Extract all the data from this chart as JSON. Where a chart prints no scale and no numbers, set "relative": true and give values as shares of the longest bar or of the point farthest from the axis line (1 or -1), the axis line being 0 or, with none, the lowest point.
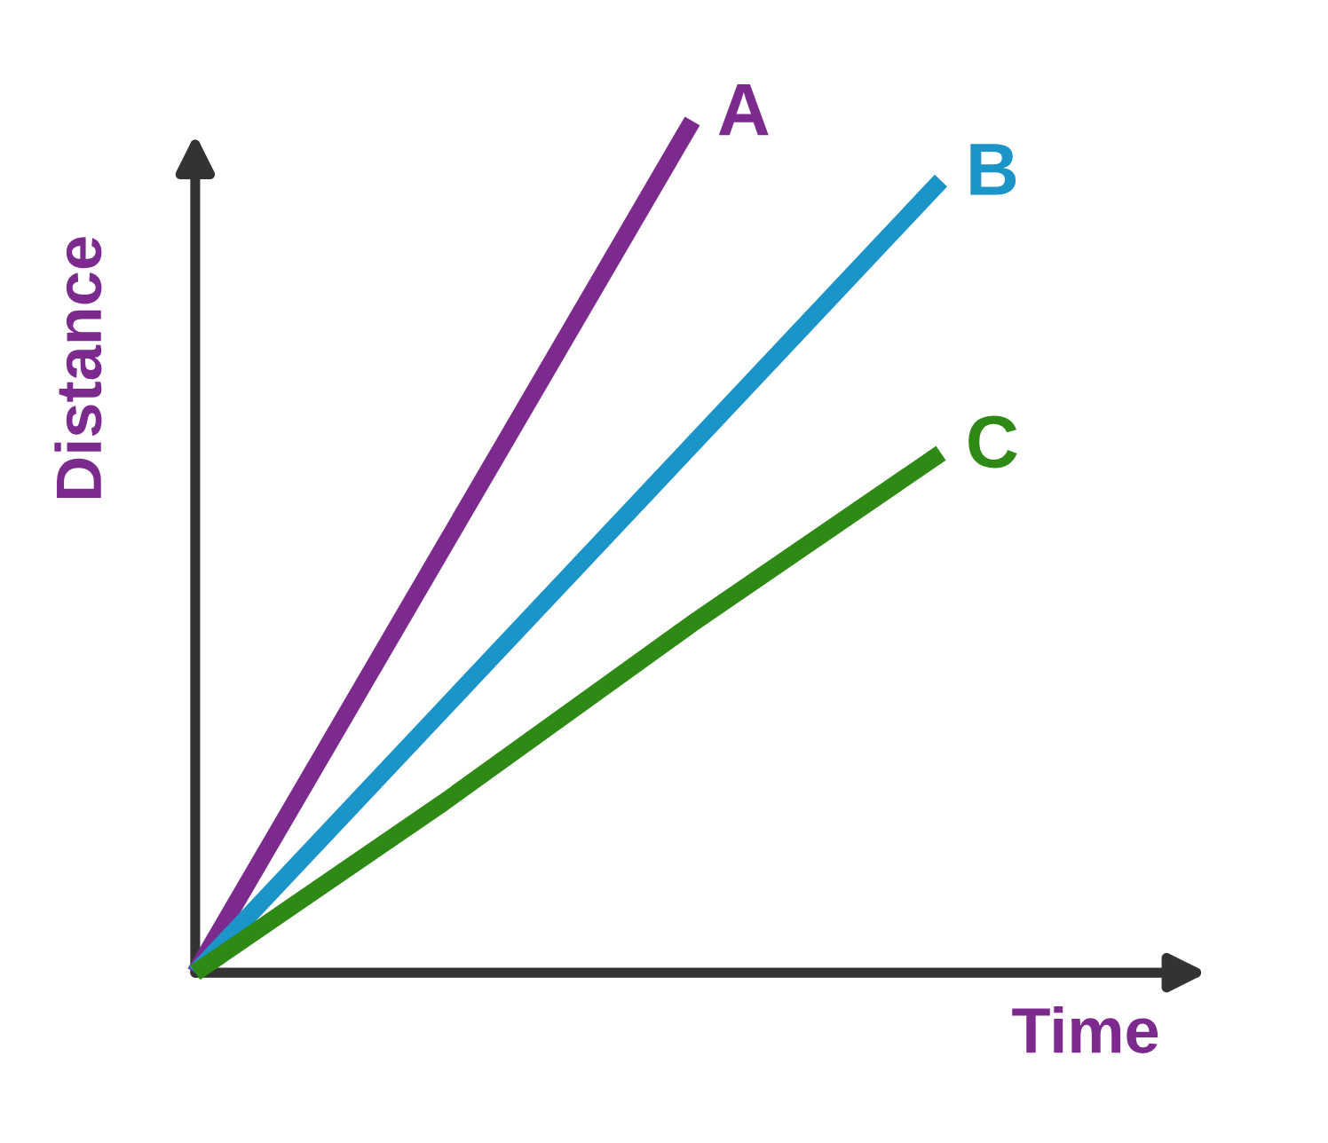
{
  "chart_data": {
    "type": "line",
    "relative": true,
    "xlabel": "Time",
    "ylabel": "Distance",
    "legend": false,
    "marker": "none",
    "line_style": "solid",
    "categories": [
      null,
      null,
      null,
      null
    ],
    "series": [
      {
        "name": "A",
        "color": "#7d2a8e",
        "values": [
          0,
          0.5,
          1,
          null
        ]
      },
      {
        "name": "B",
        "color": "#1b95c8",
        "values": [
          0,
          0.31,
          0.62,
          0.93
        ]
      },
      {
        "name": "C",
        "color": "#2e8a14",
        "values": [
          0,
          0.2,
          0.41,
          0.61
        ]
      }
    ]
  }
}
